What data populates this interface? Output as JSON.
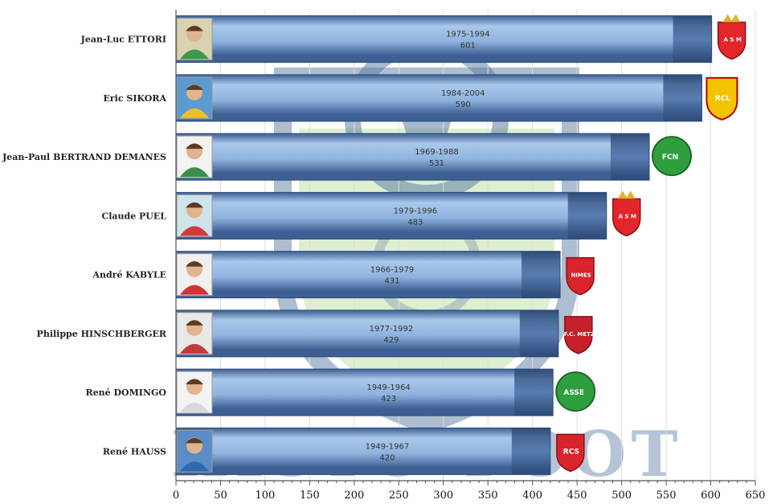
{
  "watermark": {
    "text": "HISTO-FOOT"
  },
  "colors": {
    "bar_dark": "#3d5f93",
    "bar_light": "#a9c8ea",
    "watermark": "#3f6894",
    "watermark_fill": "#cfe8c0",
    "grid": "#dddddd"
  },
  "chart_data": {
    "type": "bar",
    "orientation": "horizontal",
    "title": "",
    "xlabel": "",
    "ylabel": "",
    "xlim": [
      0,
      650
    ],
    "xticks": [
      0,
      50,
      100,
      150,
      200,
      250,
      300,
      350,
      400,
      450,
      500,
      550,
      600,
      650
    ],
    "grid": "vertical",
    "categories": [
      "Jean-Luc ETTORI",
      "Eric SIKORA",
      "Jean-Paul BERTRAND DEMANES",
      "Claude PUEL",
      "André KABYLE",
      "Philippe HINSCHBERGER",
      "René DOMINGO",
      "René HAUSS"
    ],
    "values": [
      601,
      590,
      531,
      483,
      431,
      429,
      423,
      420
    ],
    "periods": [
      "1975-1994",
      "1984-2004",
      "1969-1988",
      "1979-1996",
      "1966-1979",
      "1977-1992",
      "1949-1964",
      "1949-1967"
    ],
    "clubs": [
      {
        "badge": "monaco-crest",
        "color": "#e3262c",
        "text": "A S M"
      },
      {
        "badge": "lens-crest",
        "color": "#f3c300",
        "text": "RCL"
      },
      {
        "badge": "nantes-crest",
        "color": "#2f9e3f",
        "text": "FCN"
      },
      {
        "badge": "monaco-crest",
        "color": "#e3262c",
        "text": "A S M"
      },
      {
        "badge": "nimes-crest",
        "color": "#d8242b",
        "text": "NIMES"
      },
      {
        "badge": "metz-crest",
        "color": "#c6202b",
        "text": "F.C. METZ"
      },
      {
        "badge": "saint-etienne-crest",
        "color": "#2f9e3f",
        "text": "ASSE"
      },
      {
        "badge": "strasbourg-crest",
        "color": "#d8242b",
        "text": "RCS"
      }
    ],
    "photos": [
      {
        "kit": "#3e9a4a",
        "bg": "#d9d2b0"
      },
      {
        "kit": "#e9c12e",
        "bg": "#5a9bd1"
      },
      {
        "kit": "#3d8f4a",
        "bg": "#f2f2f2"
      },
      {
        "kit": "#d33a3a",
        "bg": "#cfe3ea"
      },
      {
        "kit": "#d23434",
        "bg": "#f0f0f0"
      },
      {
        "kit": "#c23a3a",
        "bg": "#e9e9e9"
      },
      {
        "kit": "#d9d9d9",
        "bg": "#f3f3f3"
      },
      {
        "kit": "#2e6ab0",
        "bg": "#5a8dc6"
      }
    ]
  }
}
